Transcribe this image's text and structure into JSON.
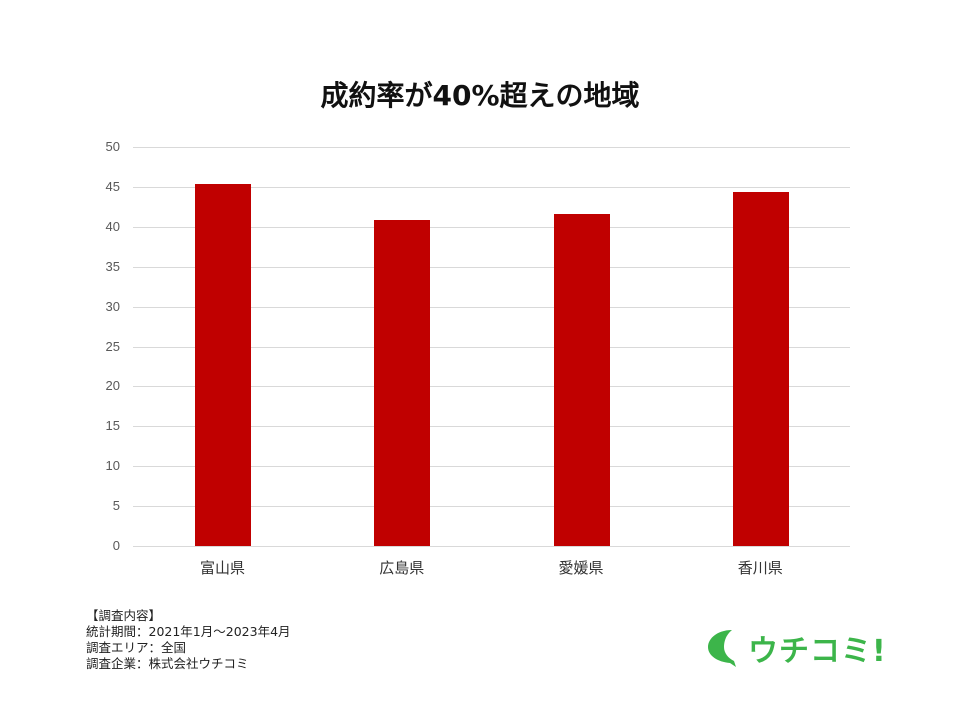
{
  "chart_data": {
    "type": "bar",
    "title": "成約率が40%超えの地域",
    "categories": [
      "富山県",
      "広島県",
      "愛媛県",
      "香川県"
    ],
    "values": [
      45.4,
      40.9,
      41.6,
      44.4
    ],
    "xlabel": "",
    "ylabel": "",
    "ylim": [
      0,
      50
    ],
    "yticks": [
      "0",
      "5",
      "10",
      "15",
      "20",
      "25",
      "30",
      "35",
      "40",
      "45",
      "50"
    ],
    "grid": true,
    "legend": "none",
    "bar_color": "#c00000"
  },
  "notes": {
    "heading": "【調査内容】",
    "period": "統計期間：2021年1月～2023年4月",
    "area": "調査エリア：全国",
    "company": "調査企業：株式会社ウチコミ"
  },
  "logo": {
    "text": "ウチコミ!",
    "color": "#3cb54a",
    "icon": "speech-bubble-icon"
  }
}
